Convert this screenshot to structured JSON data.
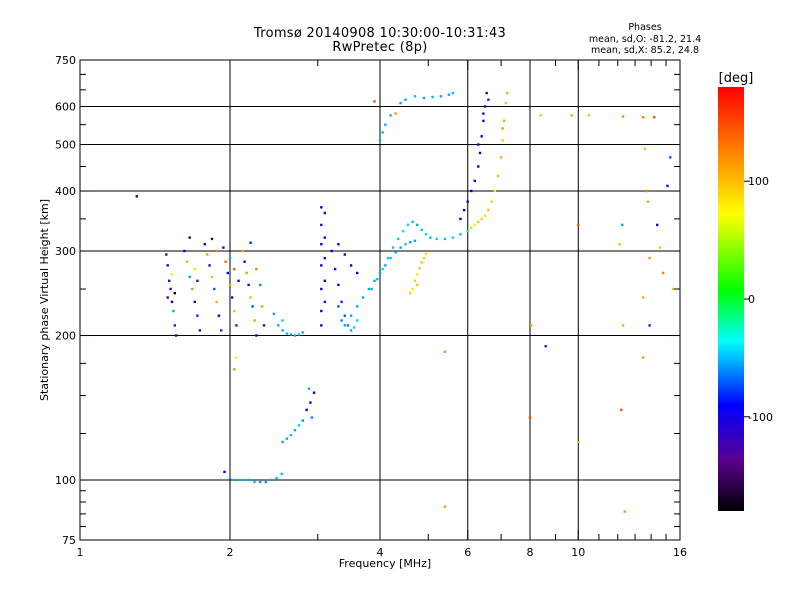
{
  "header": {
    "title": "Tromsø 20140908 10:30:00-10:31:43",
    "subtitle": "RwPretec (8p)"
  },
  "phase_stats": {
    "title": "Phases",
    "line_o": "mean, sd,O: -81.2, 21.4",
    "line_x": "mean, sd,X: 85.2, 24.8"
  },
  "colorbar": {
    "label": "[deg]",
    "ticks": [
      {
        "value": 100,
        "label": "100"
      },
      {
        "value": 0,
        "label": "0"
      },
      {
        "value": -100,
        "label": "-100"
      }
    ],
    "min": -180,
    "max": 180
  },
  "chart_data": {
    "type": "scatter",
    "title": "Tromsø 20140908 10:30:00-10:31:43",
    "subtitle": "RwPretec (8p)",
    "xlabel": "Frequency [MHz]",
    "ylabel": "Stationary phase Virtual Height [km]",
    "xscale": "log",
    "yscale": "log",
    "xlim": [
      1,
      16
    ],
    "ylim": [
      75,
      750
    ],
    "xticks": [
      {
        "value": 1,
        "label": "1"
      },
      {
        "value": 2,
        "label": "2"
      },
      {
        "value": 4,
        "label": "4"
      },
      {
        "value": 6,
        "label": "6"
      },
      {
        "value": 8,
        "label": "8"
      },
      {
        "value": 10,
        "label": "10"
      },
      {
        "value": 16,
        "label": "16"
      }
    ],
    "yticks": [
      {
        "value": 75,
        "label": "75"
      },
      {
        "value": 100,
        "label": "100"
      },
      {
        "value": 200,
        "label": "200"
      },
      {
        "value": 300,
        "label": "300"
      },
      {
        "value": 400,
        "label": "400"
      },
      {
        "value": 500,
        "label": "500"
      },
      {
        "value": 600,
        "label": "600"
      },
      {
        "value": 750,
        "label": "750"
      }
    ],
    "grid_x": [
      2,
      4,
      6,
      8,
      10
    ],
    "grid_y": [
      100,
      200,
      300,
      400,
      500,
      600
    ],
    "color_scale": "rainbow phase [deg], -180 to 180",
    "points": [
      [
        1.3,
        390,
        -100
      ],
      [
        1.49,
        295,
        -120
      ],
      [
        1.5,
        280,
        -110
      ],
      [
        1.51,
        260,
        -95
      ],
      [
        1.52,
        250,
        -130
      ],
      [
        1.53,
        235,
        -100
      ],
      [
        1.54,
        225,
        -60
      ],
      [
        1.55,
        210,
        -90
      ],
      [
        1.56,
        200,
        -110
      ],
      [
        1.5,
        240,
        -150
      ],
      [
        1.53,
        268,
        60
      ],
      [
        1.55,
        245,
        -170
      ],
      [
        1.62,
        300,
        -100
      ],
      [
        1.64,
        285,
        110
      ],
      [
        1.66,
        265,
        -60
      ],
      [
        1.68,
        250,
        120
      ],
      [
        1.7,
        235,
        -110
      ],
      [
        1.72,
        220,
        -90
      ],
      [
        1.74,
        205,
        -120
      ],
      [
        1.66,
        320,
        -160
      ],
      [
        1.7,
        275,
        80
      ],
      [
        1.72,
        260,
        -130
      ],
      [
        1.78,
        310,
        -100
      ],
      [
        1.8,
        295,
        120
      ],
      [
        1.82,
        280,
        -120
      ],
      [
        1.84,
        265,
        100
      ],
      [
        1.86,
        250,
        -80
      ],
      [
        1.88,
        235,
        110
      ],
      [
        1.9,
        220,
        -100
      ],
      [
        1.92,
        205,
        -90
      ],
      [
        1.84,
        318,
        -150
      ],
      [
        1.88,
        300,
        130
      ],
      [
        1.94,
        305,
        -110
      ],
      [
        1.96,
        285,
        140
      ],
      [
        1.98,
        270,
        -100
      ],
      [
        2.0,
        255,
        120
      ],
      [
        2.02,
        240,
        -130
      ],
      [
        2.04,
        225,
        100
      ],
      [
        2.06,
        210,
        -90
      ],
      [
        2.0,
        290,
        -60
      ],
      [
        2.04,
        275,
        150
      ],
      [
        2.08,
        260,
        -110
      ],
      [
        2.12,
        300,
        110
      ],
      [
        2.14,
        285,
        -100
      ],
      [
        2.16,
        270,
        120
      ],
      [
        2.18,
        255,
        -120
      ],
      [
        2.2,
        240,
        100
      ],
      [
        2.22,
        230,
        -80
      ],
      [
        2.24,
        215,
        120
      ],
      [
        2.26,
        200,
        -100
      ],
      [
        2.2,
        312,
        -90
      ],
      [
        2.26,
        275,
        130
      ],
      [
        2.3,
        255,
        -70
      ],
      [
        2.32,
        230,
        120
      ],
      [
        2.34,
        210,
        -110
      ],
      [
        2.06,
        180,
        60
      ],
      [
        2.04,
        170,
        120
      ],
      [
        2.0,
        101,
        -60
      ],
      [
        2.06,
        100,
        -60
      ],
      [
        2.12,
        100,
        -55
      ],
      [
        2.18,
        100,
        -60
      ],
      [
        2.24,
        99,
        -55
      ],
      [
        2.3,
        99,
        -60
      ],
      [
        2.36,
        99,
        -65
      ],
      [
        2.42,
        100,
        -60
      ],
      [
        2.48,
        101,
        -55
      ],
      [
        2.54,
        103,
        -55
      ],
      [
        1.95,
        104,
        -100
      ],
      [
        2.5,
        210,
        -60
      ],
      [
        2.55,
        205,
        -60
      ],
      [
        2.6,
        202,
        -55
      ],
      [
        2.65,
        201,
        -60
      ],
      [
        2.7,
        200,
        -60
      ],
      [
        2.75,
        201,
        -55
      ],
      [
        2.8,
        203,
        -60
      ],
      [
        2.55,
        215,
        -50
      ],
      [
        2.45,
        222,
        -60
      ],
      [
        2.55,
        120,
        -60
      ],
      [
        2.6,
        122,
        -60
      ],
      [
        2.65,
        124,
        -55
      ],
      [
        2.7,
        127,
        -60
      ],
      [
        2.75,
        130,
        -50
      ],
      [
        2.8,
        133,
        -65
      ],
      [
        2.85,
        140,
        -100
      ],
      [
        2.9,
        145,
        -110
      ],
      [
        2.95,
        152,
        -100
      ],
      [
        2.88,
        155,
        -60
      ],
      [
        2.92,
        135,
        -70
      ],
      [
        3.05,
        370,
        -100
      ],
      [
        3.05,
        340,
        -110
      ],
      [
        3.05,
        310,
        -105
      ],
      [
        3.05,
        280,
        -100
      ],
      [
        3.05,
        250,
        -110
      ],
      [
        3.05,
        225,
        -100
      ],
      [
        3.05,
        210,
        -110
      ],
      [
        3.1,
        360,
        -120
      ],
      [
        3.1,
        320,
        -105
      ],
      [
        3.1,
        290,
        -110
      ],
      [
        3.1,
        260,
        -100
      ],
      [
        3.1,
        235,
        -95
      ],
      [
        3.2,
        300,
        -100
      ],
      [
        3.25,
        275,
        -110
      ],
      [
        3.3,
        255,
        -100
      ],
      [
        3.35,
        235,
        -90
      ],
      [
        3.4,
        220,
        -80
      ],
      [
        3.45,
        210,
        -70
      ],
      [
        3.5,
        205,
        -60
      ],
      [
        3.55,
        208,
        -50
      ],
      [
        3.6,
        215,
        -50
      ],
      [
        3.3,
        230,
        -80
      ],
      [
        3.35,
        215,
        -70
      ],
      [
        3.4,
        210,
        -60
      ],
      [
        3.5,
        220,
        -60
      ],
      [
        3.6,
        230,
        -60
      ],
      [
        3.7,
        240,
        -60
      ],
      [
        3.8,
        250,
        -60
      ],
      [
        3.9,
        260,
        -60
      ],
      [
        4.0,
        270,
        -60
      ],
      [
        4.1,
        280,
        -60
      ],
      [
        4.2,
        290,
        -55
      ],
      [
        4.3,
        298,
        -60
      ],
      [
        4.4,
        305,
        -60
      ],
      [
        4.5,
        310,
        -55
      ],
      [
        4.6,
        313,
        -60
      ],
      [
        4.7,
        315,
        -60
      ],
      [
        3.3,
        310,
        -100
      ],
      [
        3.4,
        295,
        -110
      ],
      [
        3.5,
        280,
        -105
      ],
      [
        3.6,
        270,
        -100
      ],
      [
        3.85,
        250,
        -60
      ],
      [
        3.95,
        262,
        -55
      ],
      [
        4.05,
        275,
        -50
      ],
      [
        4.15,
        290,
        -50
      ],
      [
        4.25,
        305,
        -55
      ],
      [
        4.35,
        318,
        -50
      ],
      [
        4.45,
        330,
        -45
      ],
      [
        4.55,
        340,
        -50
      ],
      [
        4.65,
        345,
        -55
      ],
      [
        4.75,
        340,
        -60
      ],
      [
        4.85,
        332,
        -55
      ],
      [
        4.95,
        325,
        -50
      ],
      [
        5.05,
        320,
        -55
      ],
      [
        5.2,
        318,
        -50
      ],
      [
        5.4,
        318,
        -55
      ],
      [
        5.6,
        320,
        -50
      ],
      [
        5.8,
        325,
        -55
      ],
      [
        4.65,
        250,
        80
      ],
      [
        4.7,
        260,
        90
      ],
      [
        4.75,
        268,
        80
      ],
      [
        4.8,
        276,
        95
      ],
      [
        4.85,
        284,
        100
      ],
      [
        4.9,
        290,
        90
      ],
      [
        4.95,
        296,
        85
      ],
      [
        4.6,
        245,
        90
      ],
      [
        4.75,
        255,
        95
      ],
      [
        5.8,
        350,
        -100
      ],
      [
        5.9,
        365,
        -100
      ],
      [
        6.0,
        380,
        -110
      ],
      [
        6.1,
        400,
        -100
      ],
      [
        6.2,
        420,
        -110
      ],
      [
        6.3,
        450,
        -100
      ],
      [
        6.35,
        480,
        -110
      ],
      [
        6.4,
        520,
        -100
      ],
      [
        6.45,
        560,
        -110
      ],
      [
        6.5,
        600,
        -100
      ],
      [
        6.55,
        640,
        -110
      ],
      [
        6.45,
        580,
        -130
      ],
      [
        6.3,
        500,
        -120
      ],
      [
        6.6,
        620,
        -90
      ],
      [
        6.0,
        330,
        -45
      ],
      [
        6.1,
        335,
        90
      ],
      [
        6.2,
        340,
        80
      ],
      [
        6.3,
        345,
        100
      ],
      [
        6.4,
        350,
        90
      ],
      [
        6.5,
        355,
        80
      ],
      [
        6.6,
        365,
        100
      ],
      [
        6.7,
        380,
        90
      ],
      [
        6.8,
        400,
        80
      ],
      [
        6.9,
        430,
        100
      ],
      [
        7.0,
        470,
        110
      ],
      [
        7.05,
        510,
        100
      ],
      [
        7.1,
        560,
        110
      ],
      [
        7.15,
        610,
        100
      ],
      [
        7.2,
        640,
        110
      ],
      [
        7.05,
        540,
        120
      ],
      [
        4.0,
        510,
        -60
      ],
      [
        4.05,
        530,
        -55
      ],
      [
        4.1,
        550,
        -60
      ],
      [
        4.3,
        580,
        120
      ],
      [
        4.5,
        620,
        -60
      ],
      [
        4.7,
        630,
        -55
      ],
      [
        4.9,
        625,
        -60
      ],
      [
        5.1,
        628,
        -55
      ],
      [
        5.3,
        630,
        -60
      ],
      [
        5.5,
        635,
        -60
      ],
      [
        5.6,
        640,
        -55
      ],
      [
        4.4,
        610,
        -60
      ],
      [
        3.9,
        615,
        150
      ],
      [
        4.2,
        575,
        -60
      ],
      [
        5.4,
        88,
        120
      ],
      [
        8.4,
        575,
        100
      ],
      [
        8.05,
        210,
        110
      ],
      [
        8.0,
        135,
        150
      ],
      [
        8.6,
        190,
        -90
      ],
      [
        10.0,
        340,
        150
      ],
      [
        10.0,
        120,
        110
      ],
      [
        9.7,
        575,
        110
      ],
      [
        12.3,
        572,
        120
      ],
      [
        12.2,
        140,
        150
      ],
      [
        12.25,
        340,
        -60
      ],
      [
        12.3,
        210,
        110
      ],
      [
        12.1,
        310,
        100
      ],
      [
        12.4,
        86,
        20
      ],
      [
        13.5,
        570,
        130
      ],
      [
        13.6,
        490,
        100
      ],
      [
        13.7,
        400,
        130
      ],
      [
        13.8,
        380,
        110
      ],
      [
        13.9,
        290,
        120
      ],
      [
        14.2,
        570,
        150
      ],
      [
        14.4,
        340,
        -110
      ],
      [
        14.6,
        305,
        100
      ],
      [
        14.8,
        270,
        130
      ],
      [
        15.1,
        410,
        -110
      ],
      [
        15.3,
        470,
        -80
      ],
      [
        15.5,
        250,
        100
      ],
      [
        13.5,
        180,
        120
      ],
      [
        13.9,
        210,
        -90
      ],
      [
        13.5,
        240,
        110
      ],
      [
        10.5,
        575,
        100
      ],
      [
        5.4,
        185,
        120
      ]
    ]
  }
}
